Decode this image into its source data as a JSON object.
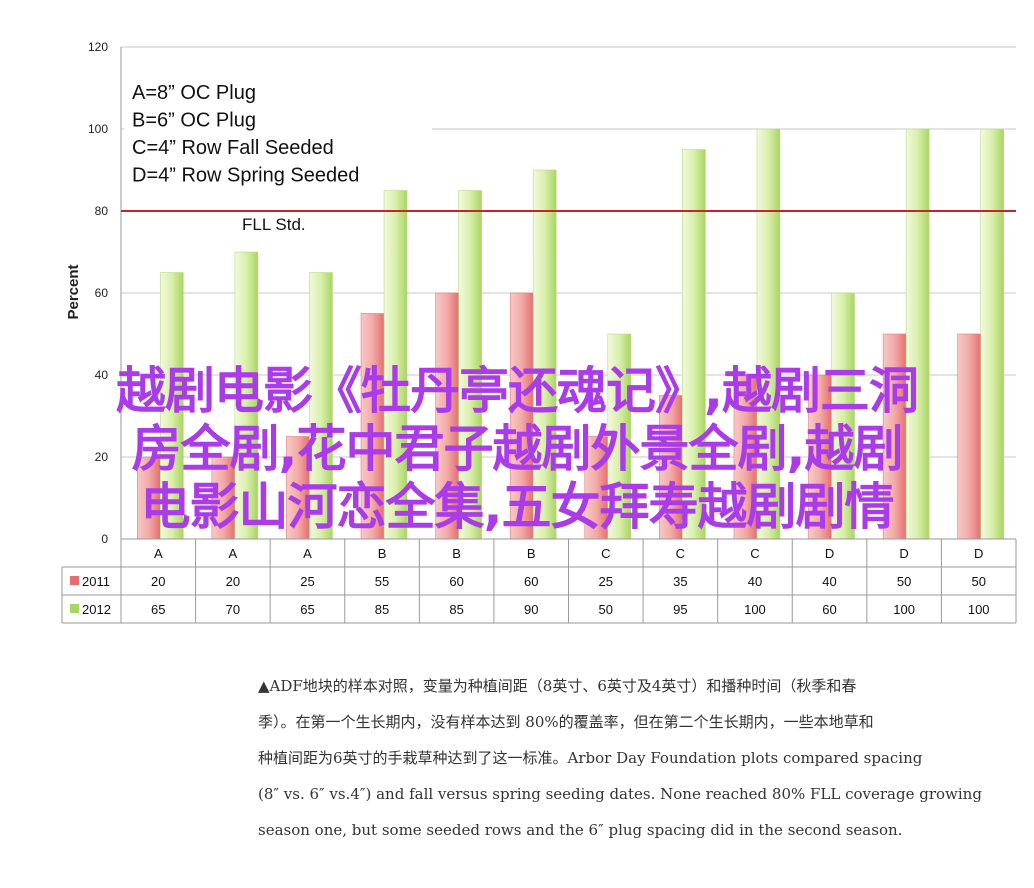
{
  "chart_data": {
    "type": "bar",
    "title": "",
    "ylabel": "Percent",
    "xlabel": "",
    "ylim": [
      0,
      120
    ],
    "yticks": [
      0,
      20,
      40,
      60,
      80,
      100,
      120
    ],
    "categories": [
      "A",
      "A",
      "A",
      "B",
      "B",
      "B",
      "C",
      "C",
      "C",
      "D",
      "D",
      "D"
    ],
    "series": [
      {
        "name": "2011",
        "color": "#e56f70",
        "values": [
          20,
          20,
          25,
          55,
          60,
          60,
          25,
          35,
          40,
          40,
          50,
          50
        ]
      },
      {
        "name": "2012",
        "color": "#a9d563",
        "values": [
          65,
          70,
          65,
          85,
          85,
          90,
          50,
          95,
          100,
          60,
          100,
          100
        ]
      }
    ],
    "reference_line": {
      "label": "FLL Std.",
      "value": 80,
      "color": "#c0272d"
    },
    "legend_note": [
      "A=8” OC Plug",
      "B=6” OC Plug",
      "C=4” Row Fall Seeded",
      "D=4” Row Spring Seeded"
    ],
    "grid": true,
    "data_table": true
  },
  "overlay": {
    "lines": [
      "越剧电影《牡丹亭还魂记》,越剧三洞",
      "房全剧,花中君子越剧外景全剧,越剧",
      "电影山河恋全集,五女拜寿越剧剧情"
    ]
  },
  "caption": {
    "lines": [
      "▲ADF地块的样本对照，变量为种植间距（8英寸、6英寸及4英寸）和播种时间（秋季和春",
      "季）。在第一个生长期内，没有样本达到 80%的覆盖率，但在第二个生长期内，一些本地草和",
      "种植间距为6英寸的手栽草种达到了这一标准。Arbor Day Foundation plots compared spacing",
      "(8″ vs. 6″ vs.4″) and fall versus spring seeding dates. None reached 80% FLL coverage growing",
      "season one, but some seeded rows and the 6″ plug spacing did in the second season."
    ]
  }
}
